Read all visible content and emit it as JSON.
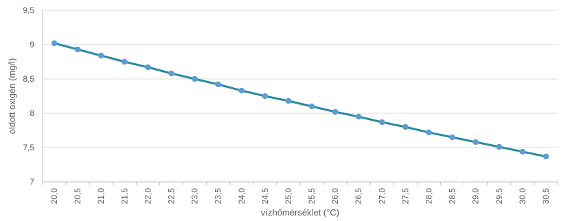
{
  "chart_data": {
    "type": "line",
    "xlabel": "vízhőmérséklet (°C)",
    "ylabel": "oldott oxigén (mg/l)",
    "x": [
      "20,0",
      "20,5",
      "21,0",
      "21,5",
      "22,0",
      "22,5",
      "23,0",
      "23,5",
      "24,0",
      "24,5",
      "25,0",
      "25,5",
      "26,0",
      "26,5",
      "27,0",
      "27,5",
      "28,0",
      "28,5",
      "29,0",
      "29,5",
      "30,0",
      "30,5"
    ],
    "series": [
      {
        "values": [
          9.02,
          8.93,
          8.84,
          8.75,
          8.67,
          8.58,
          8.5,
          8.42,
          8.33,
          8.25,
          8.18,
          8.1,
          8.02,
          7.95,
          7.87,
          7.8,
          7.72,
          7.65,
          7.58,
          7.51,
          7.44,
          7.37
        ]
      }
    ],
    "ylim": [
      7,
      9.5
    ],
    "yticks": [
      "7",
      "7,5",
      "8",
      "8,5",
      "9",
      "9,5"
    ],
    "grid": "horizontal",
    "colors": {
      "line": "#2a8aa0",
      "marker": "#5b9bd5",
      "grid": "#d9d9d9",
      "axis": "#bfbfbf"
    }
  }
}
